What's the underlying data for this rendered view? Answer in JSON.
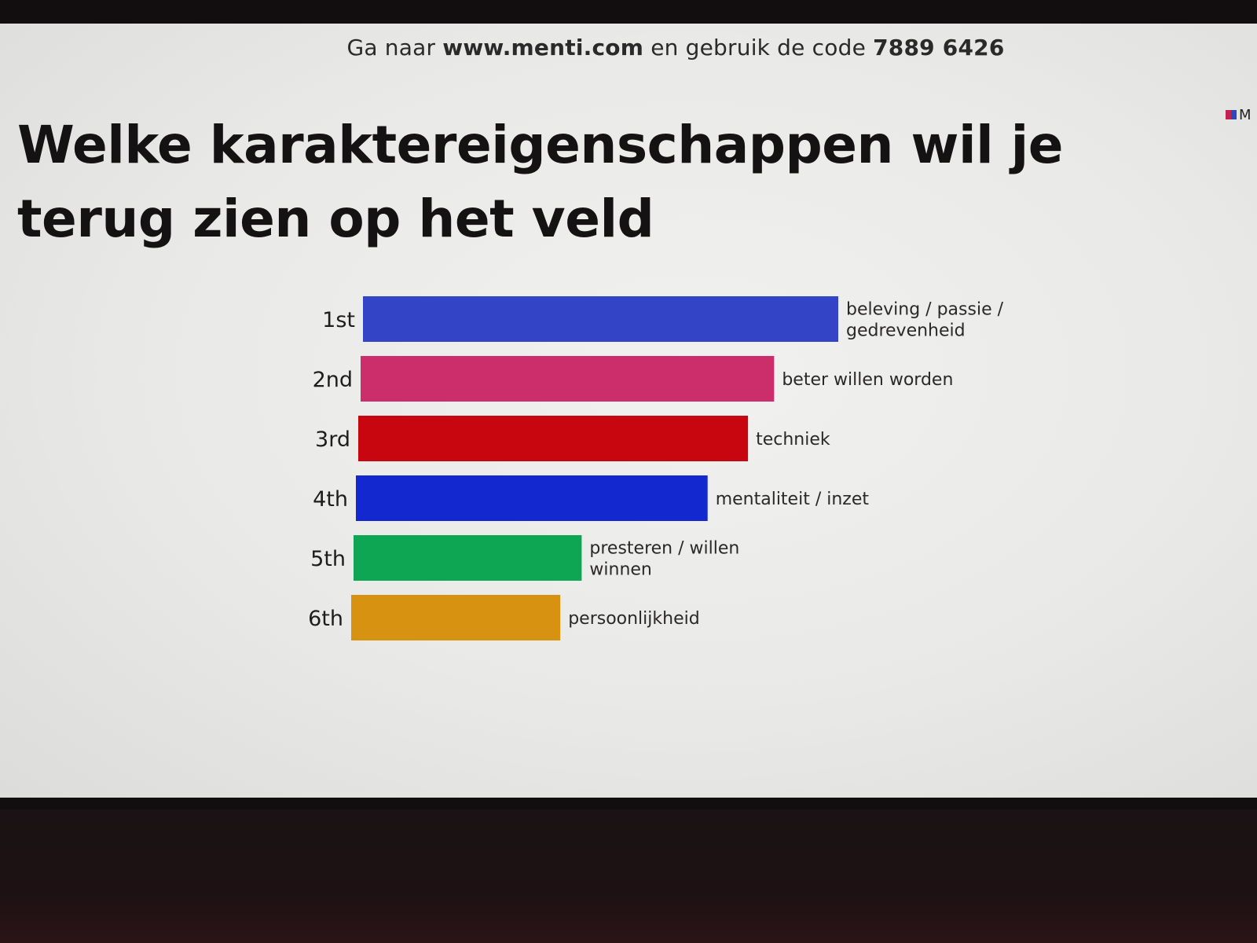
{
  "presentation": {
    "join_prefix": "Ga naar",
    "join_url": "www.menti.com",
    "join_middle": "en gebruik de code",
    "join_code": "7889 6426",
    "title": "Welke karaktereigenschappen wil je terug zien op het veld",
    "logo_letter": "M",
    "logo_icon": "mentimeter-logo-icon"
  },
  "chart_data": {
    "type": "bar",
    "orientation": "horizontal",
    "ranks": [
      "1st",
      "2nd",
      "3rd",
      "4th",
      "5th",
      "6th"
    ],
    "categories": [
      "beleving / passie / gedrevenheid",
      "beter willen worden",
      "techniek",
      "mentaliteit / inzet",
      "presteren / willen winnen",
      "persoonlijkheid"
    ],
    "values": [
      100,
      87,
      82,
      74,
      48,
      44
    ],
    "value_scale": "relative score, top rank = 100",
    "colors": [
      "#3344c6",
      "#cc2e6c",
      "#c80610",
      "#1428d0",
      "#0fa653",
      "#d89212"
    ],
    "title": "",
    "xlabel": "",
    "ylabel": "",
    "grid": false,
    "legend": "none"
  }
}
